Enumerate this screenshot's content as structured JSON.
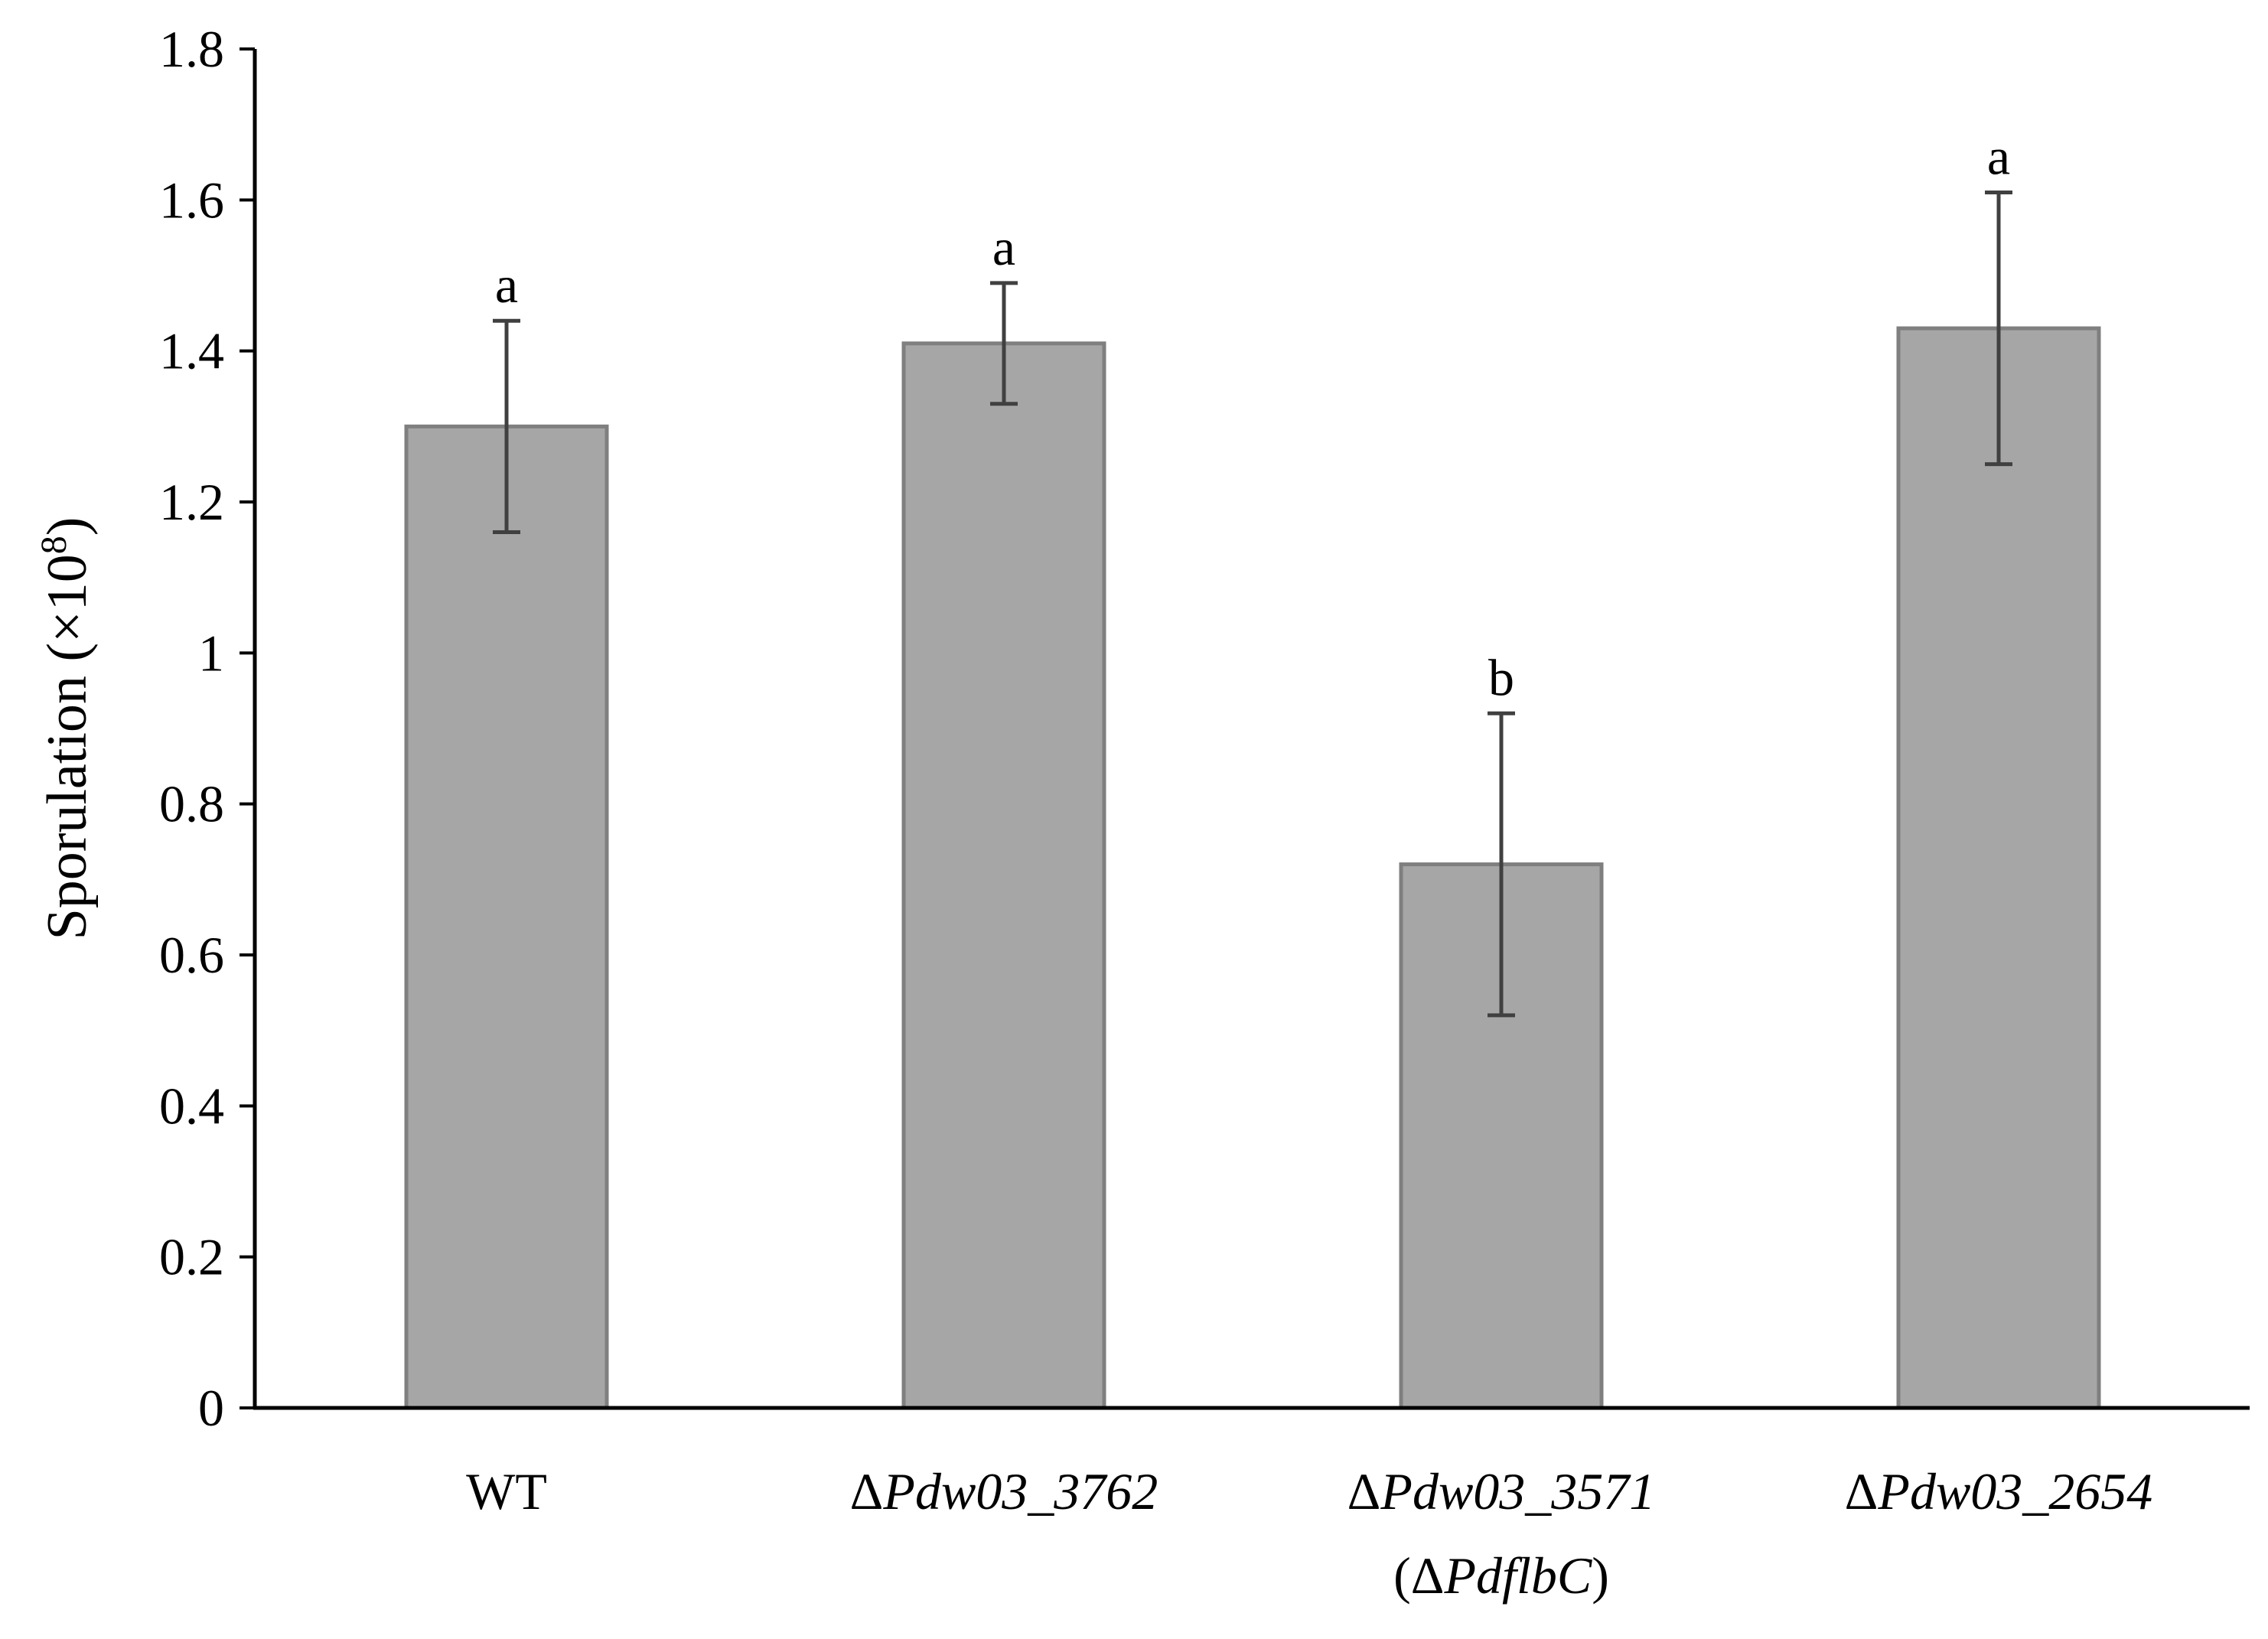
{
  "chart_data": {
    "type": "bar",
    "ylabel": "Sporulation (×10⁸)",
    "ylabel_parts": {
      "main": "Sporulation (",
      "times": "×",
      "base": "10",
      "exp": "8",
      "close": ")"
    },
    "ylim": [
      0,
      1.8
    ],
    "yticks": [
      0,
      0.2,
      0.4,
      0.6,
      0.8,
      1,
      1.2,
      1.4,
      1.6,
      1.8
    ],
    "grid": false,
    "categories": [
      {
        "delta": "",
        "name": "WT",
        "sub": ""
      },
      {
        "delta": "Δ",
        "name": "Pdw03_3762",
        "sub": ""
      },
      {
        "delta": "Δ",
        "name": "Pdw03_3571",
        "sub": "(ΔPdflbC)"
      },
      {
        "delta": "Δ",
        "name": "Pdw03_2654",
        "sub": ""
      }
    ],
    "values": [
      1.3,
      1.41,
      0.72,
      1.43
    ],
    "errors": [
      0.14,
      0.08,
      0.2,
      0.18
    ],
    "significance": [
      "a",
      "a",
      "b",
      "a"
    ],
    "colors": {
      "bar_fill": "#a6a6a6",
      "bar_stroke": "#7f7f7f",
      "error_bar": "#404040",
      "axis": "#000000"
    }
  }
}
